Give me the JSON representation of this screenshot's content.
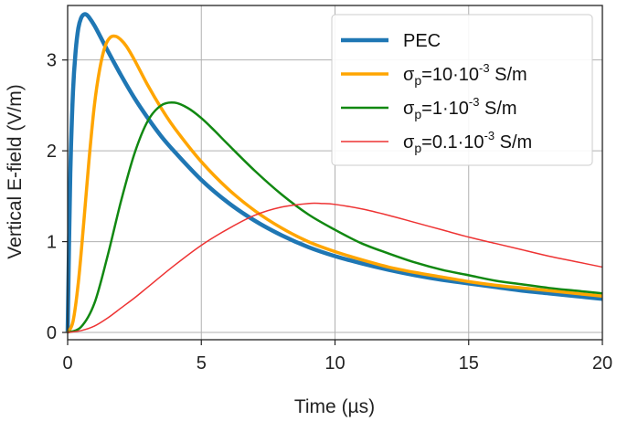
{
  "chart_data": {
    "type": "line",
    "xlabel": "Time (µs)",
    "ylabel": "Vertical E-field (V/m)",
    "xlim": [
      0,
      20
    ],
    "ylim": [
      -0.08,
      3.6
    ],
    "xticks": [
      0,
      5,
      10,
      15,
      20
    ],
    "yticks": [
      0,
      1,
      2,
      3
    ],
    "grid": true,
    "legend_position": "top-right",
    "series": [
      {
        "name": "PEC",
        "legend": {
          "base": "PEC",
          "sub": "",
          "mid": "",
          "sup": "",
          "tail": ""
        },
        "color": "#1f77b4",
        "width": 4.5,
        "x": [
          0,
          0.1,
          0.2,
          0.3,
          0.4,
          0.5,
          0.6,
          0.7,
          0.8,
          1,
          1.2,
          1.5,
          2,
          2.5,
          3,
          3.5,
          4,
          5,
          6,
          7,
          8,
          9,
          10,
          11,
          12,
          13,
          14,
          15,
          16,
          17,
          18,
          19,
          20
        ],
        "y": [
          0,
          1.75,
          2.65,
          3.1,
          3.35,
          3.46,
          3.5,
          3.5,
          3.47,
          3.38,
          3.27,
          3.1,
          2.83,
          2.58,
          2.36,
          2.16,
          1.99,
          1.68,
          1.43,
          1.23,
          1.07,
          0.94,
          0.84,
          0.76,
          0.69,
          0.63,
          0.58,
          0.54,
          0.5,
          0.46,
          0.43,
          0.4,
          0.37
        ]
      },
      {
        "name": "σp=10·10-3 S/m",
        "legend": {
          "base": "σ",
          "sub": "p",
          "mid": "=10·10",
          "sup": "-3",
          "tail": " S/m"
        },
        "color": "#ffa500",
        "width": 3.5,
        "x": [
          0,
          0.2,
          0.4,
          0.6,
          0.8,
          1,
          1.2,
          1.4,
          1.6,
          1.8,
          2,
          2.2,
          2.5,
          3,
          3.5,
          4,
          5,
          6,
          7,
          8,
          9,
          10,
          11,
          12,
          13,
          14,
          15,
          16,
          17,
          18,
          19,
          20
        ],
        "y": [
          0,
          0.12,
          0.55,
          1.2,
          1.9,
          2.5,
          2.9,
          3.15,
          3.25,
          3.26,
          3.22,
          3.15,
          3.0,
          2.72,
          2.47,
          2.25,
          1.88,
          1.58,
          1.34,
          1.15,
          1.0,
          0.89,
          0.8,
          0.72,
          0.66,
          0.61,
          0.56,
          0.52,
          0.49,
          0.46,
          0.43,
          0.4
        ]
      },
      {
        "name": "σp=1·10-3 S/m",
        "legend": {
          "base": "σ",
          "sub": "p",
          "mid": "=1·10",
          "sup": "-3",
          "tail": " S/m"
        },
        "color": "#118811",
        "width": 2.5,
        "x": [
          0,
          0.5,
          1,
          1.5,
          2,
          2.5,
          3,
          3.5,
          4,
          4.5,
          5,
          5.5,
          6,
          7,
          8,
          9,
          10,
          11,
          12,
          13,
          14,
          15,
          16,
          17,
          18,
          19,
          20
        ],
        "y": [
          0,
          0.06,
          0.32,
          0.85,
          1.45,
          1.97,
          2.33,
          2.5,
          2.53,
          2.47,
          2.36,
          2.22,
          2.07,
          1.78,
          1.52,
          1.3,
          1.13,
          0.98,
          0.87,
          0.77,
          0.69,
          0.63,
          0.57,
          0.53,
          0.49,
          0.46,
          0.43
        ]
      },
      {
        "name": "σp=0.1·10-3 S/m",
        "legend": {
          "base": "σ",
          "sub": "p",
          "mid": "=0.1·10",
          "sup": "-3",
          "tail": " S/m"
        },
        "color": "#ee3333",
        "width": 1.5,
        "x": [
          0,
          0.5,
          1,
          1.5,
          2,
          2.5,
          3,
          4,
          5,
          6,
          7,
          8,
          9,
          9.5,
          10,
          11,
          12,
          13,
          14,
          15,
          16,
          17,
          18,
          19,
          20
        ],
        "y": [
          0,
          0.02,
          0.07,
          0.16,
          0.27,
          0.38,
          0.5,
          0.74,
          0.96,
          1.14,
          1.29,
          1.38,
          1.42,
          1.42,
          1.41,
          1.36,
          1.29,
          1.21,
          1.13,
          1.05,
          0.98,
          0.91,
          0.84,
          0.78,
          0.72
        ]
      }
    ]
  }
}
